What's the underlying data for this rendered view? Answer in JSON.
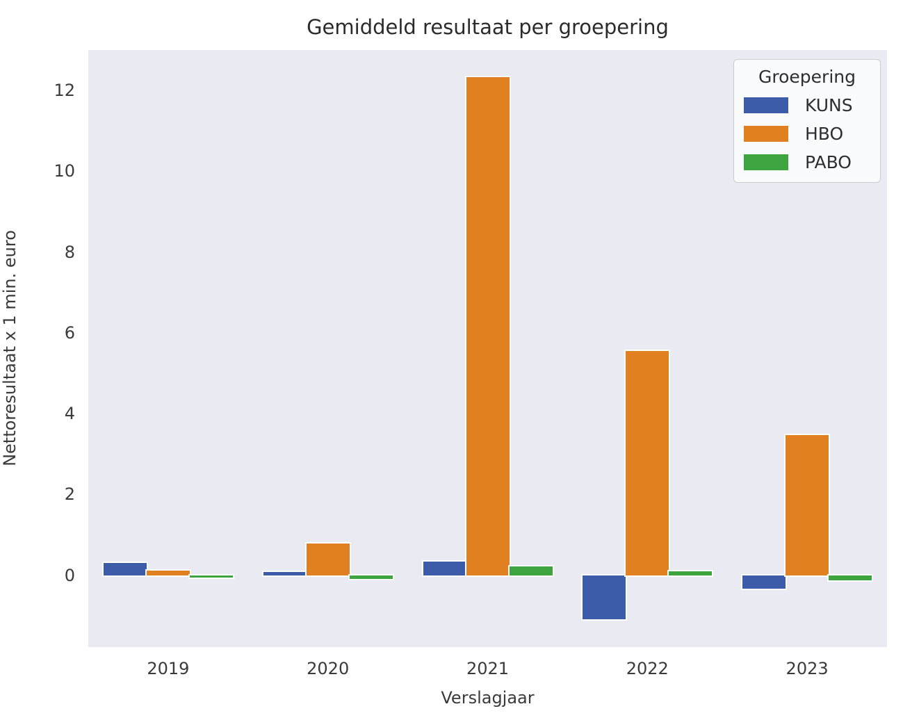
{
  "chart_data": {
    "type": "bar",
    "title": "Gemiddeld resultaat per groepering",
    "xlabel": "Verslagjaar",
    "ylabel": "Nettoresultaat x 1 min. euro",
    "categories": [
      "2019",
      "2020",
      "2021",
      "2022",
      "2023"
    ],
    "series": [
      {
        "name": "KUNS",
        "color": "#3c5ba8",
        "values": [
          0.3,
          0.07,
          0.33,
          -1.1,
          -0.33
        ]
      },
      {
        "name": "HBO",
        "color": "#e08020",
        "values": [
          0.12,
          0.78,
          12.33,
          5.55,
          3.47
        ]
      },
      {
        "name": "PABO",
        "color": "#3da43f",
        "values": [
          -0.05,
          -0.1,
          0.22,
          0.1,
          -0.12
        ]
      }
    ],
    "legend": {
      "title": "Groepering",
      "position": "upper right"
    },
    "y_ticks": [
      0,
      2,
      4,
      6,
      8,
      10,
      12
    ],
    "ylim": [
      -1.78,
      13.0
    ],
    "grid": false,
    "plot_bg": "#e9eaf2",
    "figure_bg": "#ffffff",
    "bar_edge_color": "#ffffff"
  }
}
